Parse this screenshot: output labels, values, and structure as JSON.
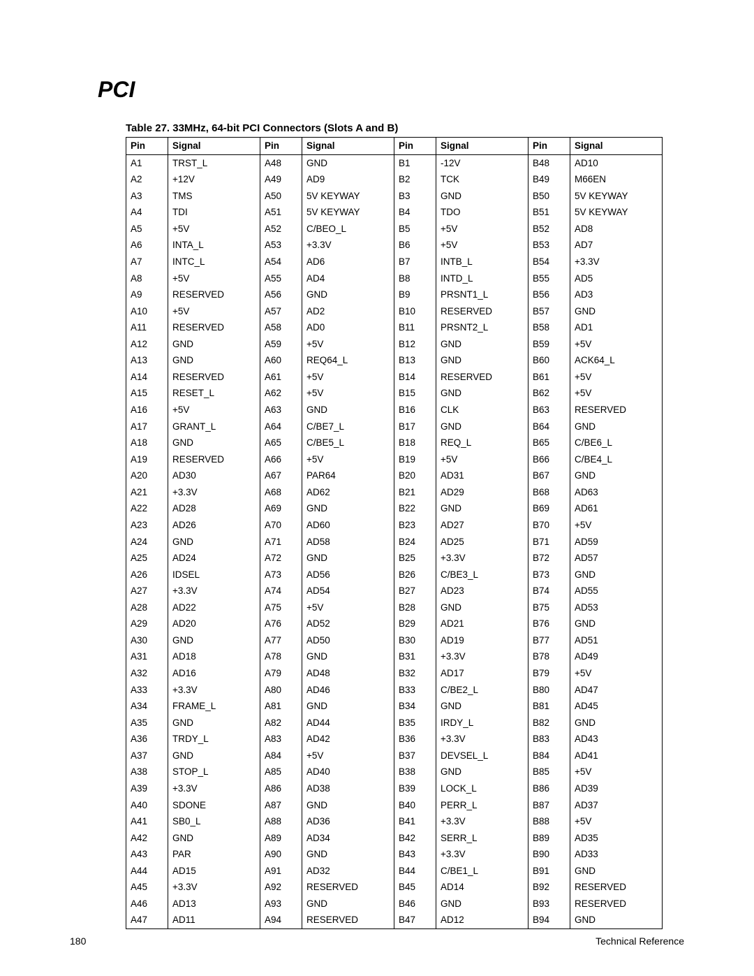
{
  "section_title": "PCI",
  "table_caption": "Table 27.    33MHz, 64-bit PCI Connectors (Slots A and B)",
  "columns": [
    "Pin",
    "Signal",
    "Pin",
    "Signal",
    "Pin",
    "Signal",
    "Pin",
    "Signal"
  ],
  "rows": [
    [
      "A1",
      "TRST_L",
      "A48",
      "GND",
      "B1",
      "-12V",
      "B48",
      "AD10"
    ],
    [
      "A2",
      "+12V",
      "A49",
      "AD9",
      "B2",
      "TCK",
      "B49",
      "M66EN"
    ],
    [
      "A3",
      "TMS",
      "A50",
      "5V KEYWAY",
      "B3",
      "GND",
      "B50",
      "5V KEYWAY"
    ],
    [
      "A4",
      "TDI",
      "A51",
      "5V KEYWAY",
      "B4",
      "TDO",
      "B51",
      "5V KEYWAY"
    ],
    [
      "A5",
      "+5V",
      "A52",
      "C/BEO_L",
      "B5",
      "+5V",
      "B52",
      "AD8"
    ],
    [
      "A6",
      "INTA_L",
      "A53",
      "+3.3V",
      "B6",
      "+5V",
      "B53",
      "AD7"
    ],
    [
      "A7",
      "INTC_L",
      "A54",
      "AD6",
      "B7",
      "INTB_L",
      "B54",
      "+3.3V"
    ],
    [
      "A8",
      "+5V",
      "A55",
      "AD4",
      "B8",
      "INTD_L",
      "B55",
      "AD5"
    ],
    [
      "A9",
      "RESERVED",
      "A56",
      "GND",
      "B9",
      "PRSNT1_L",
      "B56",
      "AD3"
    ],
    [
      "A10",
      "+5V",
      "A57",
      "AD2",
      "B10",
      "RESERVED",
      "B57",
      "GND"
    ],
    [
      "A11",
      "RESERVED",
      "A58",
      "AD0",
      "B11",
      "PRSNT2_L",
      "B58",
      "AD1"
    ],
    [
      "A12",
      "GND",
      "A59",
      "+5V",
      "B12",
      "GND",
      "B59",
      "+5V"
    ],
    [
      "A13",
      "GND",
      "A60",
      "REQ64_L",
      "B13",
      "GND",
      "B60",
      "ACK64_L"
    ],
    [
      "A14",
      "RESERVED",
      "A61",
      "+5V",
      "B14",
      "RESERVED",
      "B61",
      "+5V"
    ],
    [
      "A15",
      "RESET_L",
      "A62",
      "+5V",
      "B15",
      "GND",
      "B62",
      "+5V"
    ],
    [
      "A16",
      "+5V",
      "A63",
      "GND",
      "B16",
      "CLK",
      "B63",
      "RESERVED"
    ],
    [
      "A17",
      "GRANT_L",
      "A64",
      "C/BE7_L",
      "B17",
      "GND",
      "B64",
      "GND"
    ],
    [
      "A18",
      "GND",
      "A65",
      "C/BE5_L",
      "B18",
      "REQ_L",
      "B65",
      "C/BE6_L"
    ],
    [
      "A19",
      "RESERVED",
      "A66",
      "+5V",
      "B19",
      "+5V",
      "B66",
      "C/BE4_L"
    ],
    [
      "A20",
      "AD30",
      "A67",
      "PAR64",
      "B20",
      "AD31",
      "B67",
      "GND"
    ],
    [
      "A21",
      "+3.3V",
      "A68",
      "AD62",
      "B21",
      "AD29",
      "B68",
      "AD63"
    ],
    [
      "A22",
      "AD28",
      "A69",
      "GND",
      "B22",
      "GND",
      "B69",
      "AD61"
    ],
    [
      "A23",
      "AD26",
      "A70",
      "AD60",
      "B23",
      "AD27",
      "B70",
      "+5V"
    ],
    [
      "A24",
      "GND",
      "A71",
      "AD58",
      "B24",
      "AD25",
      "B71",
      "AD59"
    ],
    [
      "A25",
      "AD24",
      "A72",
      "GND",
      "B25",
      "+3.3V",
      "B72",
      "AD57"
    ],
    [
      "A26",
      "IDSEL",
      "A73",
      "AD56",
      "B26",
      "C/BE3_L",
      "B73",
      "GND"
    ],
    [
      "A27",
      "+3.3V",
      "A74",
      "AD54",
      "B27",
      "AD23",
      "B74",
      "AD55"
    ],
    [
      "A28",
      "AD22",
      "A75",
      "+5V",
      "B28",
      "GND",
      "B75",
      "AD53"
    ],
    [
      "A29",
      "AD20",
      "A76",
      "AD52",
      "B29",
      "AD21",
      "B76",
      "GND"
    ],
    [
      "A30",
      "GND",
      "A77",
      "AD50",
      "B30",
      "AD19",
      "B77",
      "AD51"
    ],
    [
      "A31",
      "AD18",
      "A78",
      "GND",
      "B31",
      "+3.3V",
      "B78",
      "AD49"
    ],
    [
      "A32",
      "AD16",
      "A79",
      "AD48",
      "B32",
      "AD17",
      "B79",
      "+5V"
    ],
    [
      "A33",
      "+3.3V",
      "A80",
      "AD46",
      "B33",
      "C/BE2_L",
      "B80",
      "AD47"
    ],
    [
      "A34",
      "FRAME_L",
      "A81",
      "GND",
      "B34",
      "GND",
      "B81",
      "AD45"
    ],
    [
      "A35",
      "GND",
      "A82",
      "AD44",
      "B35",
      "IRDY_L",
      "B82",
      "GND"
    ],
    [
      "A36",
      "TRDY_L",
      "A83",
      "AD42",
      "B36",
      "+3.3V",
      "B83",
      "AD43"
    ],
    [
      "A37",
      "GND",
      "A84",
      "+5V",
      "B37",
      "DEVSEL_L",
      "B84",
      "AD41"
    ],
    [
      "A38",
      "STOP_L",
      "A85",
      "AD40",
      "B38",
      "GND",
      "B85",
      "+5V"
    ],
    [
      "A39",
      "+3.3V",
      "A86",
      "AD38",
      "B39",
      "LOCK_L",
      "B86",
      "AD39"
    ],
    [
      "A40",
      "SDONE",
      "A87",
      "GND",
      "B40",
      "PERR_L",
      "B87",
      "AD37"
    ],
    [
      "A41",
      "SB0_L",
      "A88",
      "AD36",
      "B41",
      "+3.3V",
      "B88",
      "+5V"
    ],
    [
      "A42",
      "GND",
      "A89",
      "AD34",
      "B42",
      "SERR_L",
      "B89",
      "AD35"
    ],
    [
      "A43",
      "PAR",
      "A90",
      "GND",
      "B43",
      "+3.3V",
      "B90",
      "AD33"
    ],
    [
      "A44",
      "AD15",
      "A91",
      "AD32",
      "B44",
      "C/BE1_L",
      "B91",
      "GND"
    ],
    [
      "A45",
      "+3.3V",
      "A92",
      "RESERVED",
      "B45",
      "AD14",
      "B92",
      "RESERVED"
    ],
    [
      "A46",
      "AD13",
      "A93",
      "GND",
      "B46",
      "GND",
      "B93",
      "RESERVED"
    ],
    [
      "A47",
      "AD11",
      "A94",
      "RESERVED",
      "B47",
      "AD12",
      "B94",
      "GND"
    ]
  ],
  "footer": {
    "page_number": "180",
    "doc_title": "Technical Reference"
  }
}
